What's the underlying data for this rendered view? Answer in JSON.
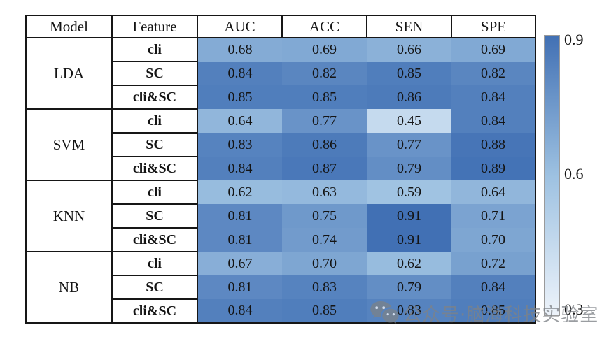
{
  "table": {
    "headers": [
      "Model",
      "Feature",
      "AUC",
      "ACC",
      "SEN",
      "SPE"
    ]
  },
  "chart_data": {
    "type": "heatmap",
    "columns": [
      "AUC",
      "ACC",
      "SEN",
      "SPE"
    ],
    "row_groups": [
      {
        "model": "LDA",
        "rows": [
          {
            "feature": "cli",
            "values": [
              0.68,
              0.69,
              0.66,
              0.69
            ]
          },
          {
            "feature": "SC",
            "values": [
              0.84,
              0.82,
              0.85,
              0.82
            ]
          },
          {
            "feature": "cli&SC",
            "values": [
              0.85,
              0.85,
              0.86,
              0.84
            ]
          }
        ]
      },
      {
        "model": "SVM",
        "rows": [
          {
            "feature": "cli",
            "values": [
              0.64,
              0.77,
              0.45,
              0.84
            ]
          },
          {
            "feature": "SC",
            "values": [
              0.83,
              0.86,
              0.77,
              0.88
            ]
          },
          {
            "feature": "cli&SC",
            "values": [
              0.84,
              0.87,
              0.79,
              0.89
            ]
          }
        ]
      },
      {
        "model": "KNN",
        "rows": [
          {
            "feature": "cli",
            "values": [
              0.62,
              0.63,
              0.59,
              0.64
            ]
          },
          {
            "feature": "SC",
            "values": [
              0.81,
              0.75,
              0.91,
              0.71
            ]
          },
          {
            "feature": "cli&SC",
            "values": [
              0.81,
              0.74,
              0.91,
              0.7
            ]
          }
        ]
      },
      {
        "model": "NB",
        "rows": [
          {
            "feature": "cli",
            "values": [
              0.67,
              0.7,
              0.62,
              0.72
            ]
          },
          {
            "feature": "SC",
            "values": [
              0.81,
              0.83,
              0.79,
              0.84
            ]
          },
          {
            "feature": "cli&SC",
            "values": [
              0.84,
              0.85,
              0.83,
              0.85
            ]
          }
        ]
      }
    ],
    "value_decimals": 2,
    "colormap": "Blues",
    "colorbar": {
      "min": 0.3,
      "max": 0.9,
      "tick_labels": [
        "0.9",
        "0.6",
        "0.3"
      ],
      "color_high": "#4170b4",
      "color_mid": "#9dc1e1",
      "color_low": "#edf3fa"
    },
    "grid": false,
    "legend_position": "right"
  },
  "watermark": {
    "icon": "wechat-icon",
    "text": "公众号·脑海科技实验室",
    "color": "#7d8286"
  }
}
